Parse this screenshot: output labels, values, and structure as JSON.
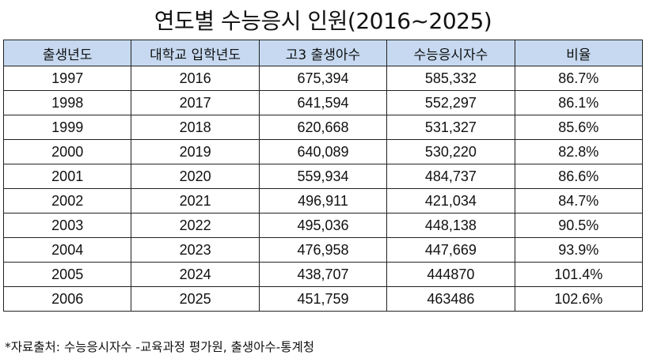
{
  "title": "연도별 수능응시 인원(2016~2025)",
  "table": {
    "headers": [
      "출생년도",
      "대학교 입학년도",
      "고3 출생아수",
      "수능응시자수",
      "비율"
    ],
    "rows": [
      [
        "1997",
        "2016",
        "675,394",
        "585,332",
        "86.7%"
      ],
      [
        "1998",
        "2017",
        "641,594",
        "552,297",
        "86.1%"
      ],
      [
        "1999",
        "2018",
        "620,668",
        "531,327",
        "85.6%"
      ],
      [
        "2000",
        "2019",
        "640,089",
        "530,220",
        "82.8%"
      ],
      [
        "2001",
        "2020",
        "559,934",
        "484,737",
        "86.6%"
      ],
      [
        "2002",
        "2021",
        "496,911",
        "421,034",
        "84.7%"
      ],
      [
        "2003",
        "2022",
        "495,036",
        "448,138",
        "90.5%"
      ],
      [
        "2004",
        "2023",
        "476,958",
        "447,669",
        "93.9%"
      ],
      [
        "2005",
        "2024",
        "438,707",
        "444870",
        "101.4%"
      ],
      [
        "2006",
        "2025",
        "451,759",
        "463486",
        "102.6%"
      ]
    ]
  },
  "footnote": "*자료출처: 수능응시자수 -교육과정 평가원, 출생아수-통계청"
}
